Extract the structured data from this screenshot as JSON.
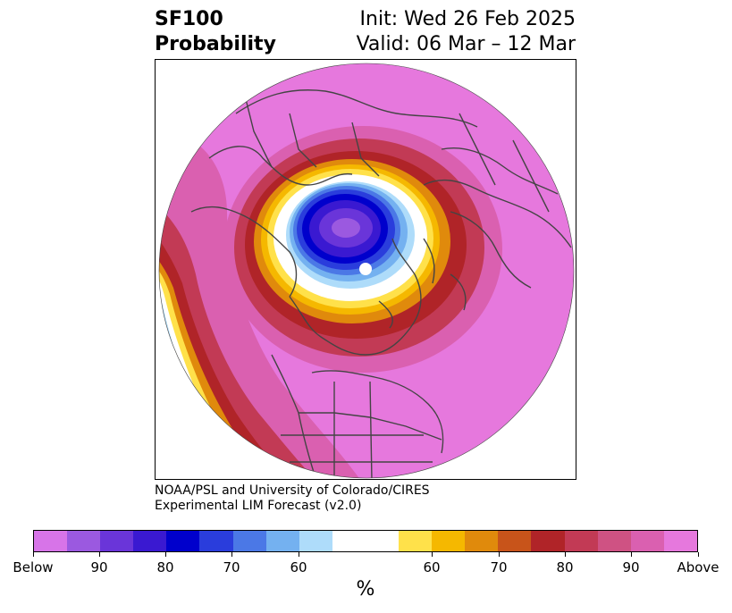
{
  "header": {
    "title_line1": "SF100",
    "title_line2": "Probability",
    "init": "Init: Wed 26 Feb 2025",
    "valid": "Valid: 06 Mar – 12 Mar"
  },
  "credit": {
    "line1": "NOAA/PSL and University of Colorado/CIRES",
    "line2": "Experimental LIM Forecast (v2.0)"
  },
  "colorbar": {
    "colors": [
      "#d774e8",
      "#9b59e0",
      "#6a35d9",
      "#3a19d1",
      "#0000cc",
      "#2a3ddc",
      "#4b78e6",
      "#74b1f0",
      "#aedcfa",
      "#ffffff",
      "#ffffff",
      "#ffe14a",
      "#f5b800",
      "#e08a0c",
      "#c8541a",
      "#b02428",
      "#c23a55",
      "#cf5283",
      "#da60b0",
      "#e678dd"
    ],
    "tick_labels": [
      "Below",
      "90",
      "80",
      "70",
      "60",
      "60",
      "70",
      "80",
      "90",
      "Above"
    ],
    "unit": "%"
  },
  "map": {
    "projection": "north polar stereographic",
    "colors": {
      "above_far": "#e678dd",
      "above_90": "#da60b0",
      "above_80": "#c23a55",
      "above_70_red": "#b02428",
      "orange": "#e08a0c",
      "yellow": "#ffe14a",
      "white": "#ffffff",
      "light_blue": "#aedcfa",
      "blue": "#4b78e6",
      "dark_blue": "#0000cc",
      "purple": "#6a35d9",
      "coast": "#444444"
    }
  }
}
